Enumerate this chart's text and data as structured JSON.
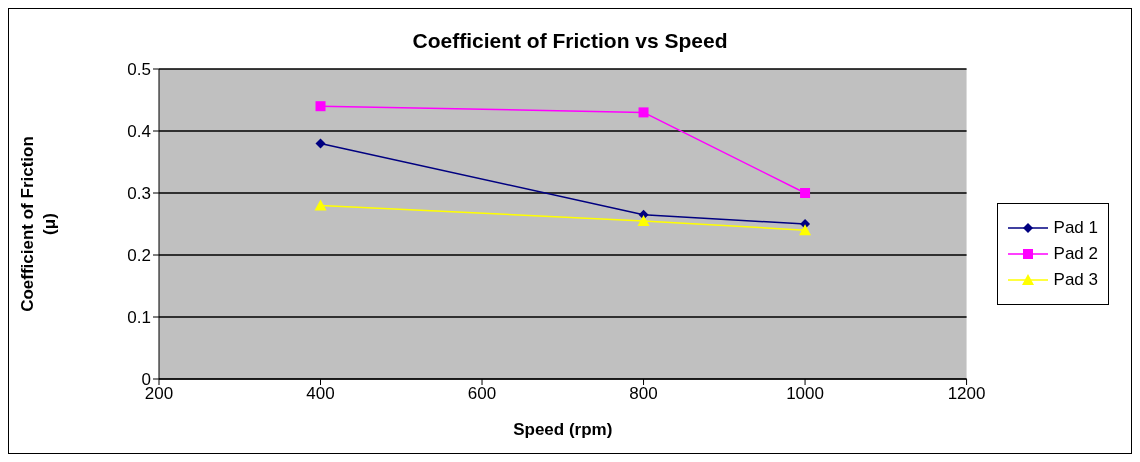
{
  "chart_data": {
    "type": "line",
    "title": "Coefficient of Friction vs Speed",
    "xlabel": "Speed (rpm)",
    "ylabel": "Coefficient of Friction (μ)",
    "x": [
      400,
      800,
      1000
    ],
    "series": [
      {
        "name": "Pad 1",
        "color": "#000080",
        "marker": "diamond",
        "values": [
          0.38,
          0.265,
          0.25
        ]
      },
      {
        "name": "Pad 2",
        "color": "#ff00ff",
        "marker": "square",
        "values": [
          0.44,
          0.43,
          0.3
        ]
      },
      {
        "name": "Pad 3",
        "color": "#ffff00",
        "marker": "triangle",
        "values": [
          0.28,
          0.255,
          0.24
        ]
      }
    ],
    "xlim": [
      200,
      1200
    ],
    "xticks": [
      200,
      400,
      600,
      800,
      1000,
      1200
    ],
    "ylim": [
      0,
      0.5
    ],
    "yticks": [
      0,
      0.1,
      0.2,
      0.3,
      0.4,
      0.5
    ],
    "grid": "y",
    "legend": "right"
  }
}
